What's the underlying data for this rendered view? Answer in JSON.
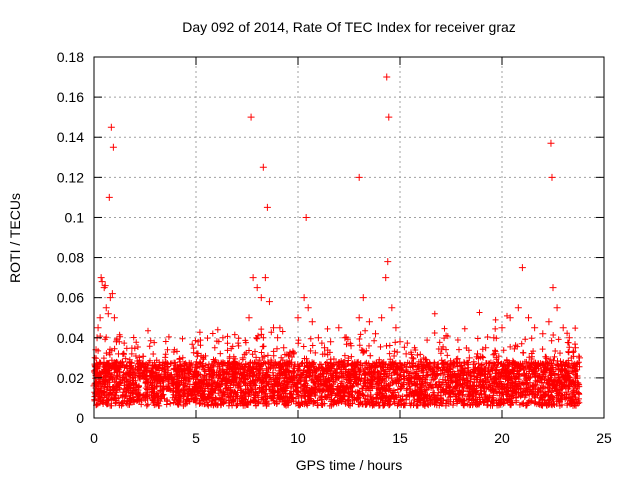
{
  "chart_data": {
    "type": "scatter",
    "title": "Day 092 of 2014, Rate Of TEC Index for receiver graz",
    "xlabel": "GPS time / hours",
    "ylabel": "ROTI / TECUs",
    "xlim": [
      0,
      25
    ],
    "ylim": [
      0,
      0.18
    ],
    "xticks": [
      0,
      5,
      10,
      15,
      20,
      25
    ],
    "xtick_labels": [
      "0",
      "5",
      "10",
      "15",
      "20",
      "25"
    ],
    "yticks": [
      0,
      0.02,
      0.04,
      0.06,
      0.08,
      0.1,
      0.12,
      0.14,
      0.16,
      0.18
    ],
    "ytick_labels": [
      "0",
      "0.02",
      "0.04",
      "0.06",
      "0.08",
      "0.1",
      "0.12",
      "0.14",
      "0.16",
      "0.18"
    ],
    "grid": true,
    "marker": "+",
    "series_color": "#ff0000",
    "series": [
      {
        "name": "ROTI",
        "x": [
          0.0,
          0.1,
          0.2,
          0.3,
          0.4,
          0.5,
          0.6,
          0.7,
          0.8,
          0.9,
          1.0,
          1.1,
          1.2,
          1.4,
          1.6,
          1.8,
          2.0,
          2.3,
          2.6,
          3.0,
          3.4,
          3.8,
          4.2,
          4.6,
          5.0,
          5.4,
          5.8,
          6.2,
          6.6,
          7.0,
          7.3,
          7.6,
          7.8,
          8.0,
          8.2,
          8.4,
          8.6,
          8.8,
          9.0,
          9.3,
          9.6,
          10.0,
          10.3,
          10.5,
          10.7,
          11.0,
          11.3,
          11.6,
          12.0,
          12.3,
          12.6,
          13.0,
          13.2,
          13.5,
          13.8,
          14.1,
          14.3,
          14.4,
          14.6,
          14.8,
          15.0,
          15.3,
          15.6,
          16.0,
          16.4,
          16.8,
          17.2,
          17.6,
          18.0,
          18.4,
          18.8,
          19.2,
          19.6,
          20.0,
          20.4,
          20.8,
          21.0,
          21.3,
          21.6,
          22.0,
          22.3,
          22.5,
          22.7,
          23.0,
          23.3,
          23.6,
          23.8,
          0.15,
          0.35,
          0.55,
          0.75,
          0.85,
          0.95,
          7.7,
          8.3,
          8.5,
          10.4,
          13.0,
          14.35,
          14.45,
          22.4,
          22.45
        ],
        "y": [
          0.016,
          0.034,
          0.045,
          0.05,
          0.068,
          0.065,
          0.055,
          0.052,
          0.06,
          0.062,
          0.05,
          0.038,
          0.032,
          0.028,
          0.026,
          0.024,
          0.023,
          0.022,
          0.021,
          0.02,
          0.019,
          0.02,
          0.021,
          0.022,
          0.018,
          0.019,
          0.02,
          0.021,
          0.022,
          0.024,
          0.03,
          0.05,
          0.07,
          0.065,
          0.06,
          0.07,
          0.058,
          0.045,
          0.04,
          0.035,
          0.032,
          0.05,
          0.06,
          0.055,
          0.048,
          0.04,
          0.035,
          0.038,
          0.045,
          0.04,
          0.036,
          0.05,
          0.06,
          0.048,
          0.042,
          0.05,
          0.07,
          0.078,
          0.055,
          0.045,
          0.038,
          0.032,
          0.03,
          0.028,
          0.026,
          0.025,
          0.024,
          0.025,
          0.026,
          0.03,
          0.032,
          0.035,
          0.04,
          0.045,
          0.05,
          0.055,
          0.075,
          0.05,
          0.045,
          0.042,
          0.048,
          0.065,
          0.055,
          0.045,
          0.04,
          0.035,
          0.03,
          0.04,
          0.07,
          0.066,
          0.11,
          0.145,
          0.135,
          0.15,
          0.125,
          0.105,
          0.1,
          0.12,
          0.17,
          0.15,
          0.137,
          0.12
        ]
      }
    ]
  }
}
